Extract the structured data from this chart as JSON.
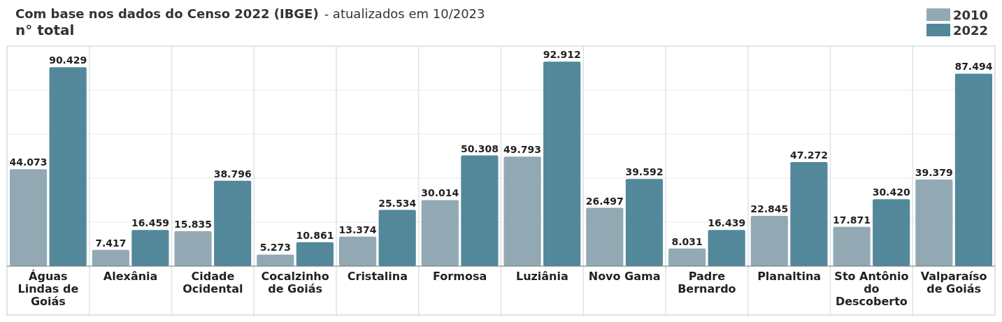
{
  "chart_data": {
    "type": "bar",
    "title": "Com base nos dados do Censo 2022 (IBGE)",
    "subtitle": "- atualizados em 10/2023",
    "ylabel": "n° total",
    "categories": [
      "Águas Lindas de Goiás",
      "Alexânia",
      "Cidade Ocidental",
      "Cocalzinho de Goiás",
      "Cristalina",
      "Formosa",
      "Luziânia",
      "Novo Gama",
      "Padre Bernardo",
      "Planaltina",
      "Sto Antônio do Descoberto",
      "Valparaíso de Goiás"
    ],
    "series": [
      {
        "name": "2010",
        "color": "#92a9b3",
        "values": [
          44073,
          7417,
          15835,
          5273,
          13374,
          30014,
          49793,
          26497,
          8031,
          22845,
          17871,
          39379
        ],
        "value_labels": [
          "44.073",
          "7.417",
          "15.835",
          "5.273",
          "13.374",
          "30.014",
          "49.793",
          "26.497",
          "8.031",
          "22.845",
          "17.871",
          "39.379"
        ]
      },
      {
        "name": "2022",
        "color": "#53889b",
        "values": [
          90429,
          16459,
          38796,
          10861,
          25534,
          50308,
          92912,
          39592,
          16439,
          47272,
          30420,
          87494
        ],
        "value_labels": [
          "90.429",
          "16.459",
          "38.796",
          "10.861",
          "25.534",
          "50.308",
          "92.912",
          "39.592",
          "16.439",
          "47.272",
          "30.420",
          "87.494"
        ]
      }
    ],
    "ylim": [
      0,
      100000
    ],
    "yticks": [
      {
        "value": 0,
        "label": null
      },
      {
        "value": 20000,
        "label": null
      },
      {
        "value": 40000,
        "label": null
      },
      {
        "value": 60000,
        "label": null
      },
      {
        "value": 80000,
        "label": null
      },
      {
        "value": 100000,
        "label": null
      }
    ],
    "grid": true,
    "legend": "top right",
    "tick_labels": "x"
  }
}
